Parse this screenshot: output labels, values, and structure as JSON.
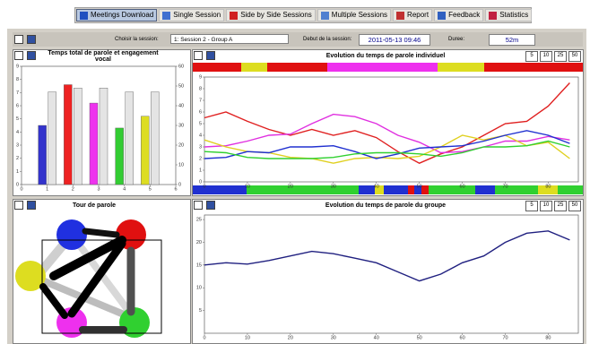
{
  "toolbar": {
    "tabs": [
      "Meetings Download",
      "Single Session",
      "Side by Side Sessions",
      "Multiple Sessions",
      "Report",
      "Feedback",
      "Statistics"
    ]
  },
  "session_bar": {
    "session_label": "Choisir la session:",
    "session_value": "1: Session 2 - Group A",
    "start_label": "Debut de la session:",
    "start_value": "2011-05-13 09:46",
    "duration_label": "Duree:",
    "duration_value": "52m"
  },
  "chart_data": [
    {
      "type": "bar",
      "title": "Temps total de parole et engagement vocal",
      "x": [
        1,
        2,
        3,
        4,
        5
      ],
      "xlim": [
        0,
        6
      ],
      "xticks": [
        0,
        1,
        2,
        3,
        4,
        5,
        6
      ],
      "ylim": [
        0,
        9
      ],
      "yticks": [
        0,
        1,
        2,
        3,
        4,
        5,
        6,
        7,
        8,
        9
      ],
      "y2lim": [
        0,
        60
      ],
      "y2ticks": [
        0,
        10,
        20,
        30,
        40,
        50,
        60
      ],
      "colors": [
        "#3333cc",
        "#ee2222",
        "#ee33ee",
        "#33cc33",
        "#dddd22"
      ],
      "series": [
        {
          "values": [
            4.5,
            7.6,
            6.2,
            4.3,
            5.2
          ]
        },
        {
          "color": "#e4e4e4",
          "axis": "y2",
          "values": [
            47,
            49,
            49,
            47,
            47
          ]
        }
      ]
    },
    {
      "type": "line",
      "title": "Evolution du temps de parole individuel",
      "zoom": [
        5,
        10,
        25,
        50
      ],
      "x": [
        0,
        5,
        10,
        15,
        20,
        25,
        30,
        35,
        40,
        45,
        50,
        55,
        60,
        65,
        70,
        75,
        80,
        85
      ],
      "xlim": [
        0,
        87
      ],
      "xticks": [
        0,
        10,
        20,
        30,
        40,
        50,
        60,
        70,
        80
      ],
      "ylim": [
        0,
        9
      ],
      "yticks": [
        0,
        1,
        2,
        3,
        4,
        5,
        6,
        7,
        8,
        9
      ],
      "series": [
        {
          "color": "#e02020",
          "values": [
            5.5,
            6,
            5.2,
            4.5,
            4,
            4.5,
            4,
            4.4,
            3.8,
            2.6,
            1.6,
            2.4,
            3,
            4,
            5,
            5.2,
            6.5,
            8.5
          ]
        },
        {
          "color": "#e030e0",
          "values": [
            3,
            3.1,
            3.5,
            4,
            4.1,
            5,
            5.8,
            5.6,
            5,
            4,
            3.4,
            2.5,
            2.6,
            3,
            3.5,
            3.5,
            3.9,
            3.6
          ]
        },
        {
          "color": "#e0d020",
          "values": [
            3.6,
            3,
            2.6,
            2.5,
            2.1,
            2,
            1.6,
            2,
            2.1,
            2,
            2.2,
            3,
            4,
            3.6,
            4,
            3.1,
            3.4,
            2
          ]
        },
        {
          "color": "#2030d0",
          "values": [
            2,
            2.1,
            2.6,
            2.5,
            3,
            3,
            3.1,
            2.6,
            2,
            2.4,
            2.9,
            3,
            3.1,
            3.5,
            4,
            4.4,
            4,
            3.3
          ]
        },
        {
          "color": "#30d030",
          "values": [
            2.6,
            2.5,
            2.1,
            2,
            2,
            2,
            2.1,
            2.4,
            2.5,
            2.5,
            2.4,
            2.2,
            2.5,
            3,
            3,
            3.1,
            3.5,
            3
          ]
        }
      ]
    },
    {
      "type": "line",
      "title": "Evolution du temps de parole du groupe",
      "zoom": [
        5,
        10,
        25,
        50
      ],
      "x": [
        0,
        5,
        10,
        15,
        20,
        25,
        30,
        35,
        40,
        45,
        50,
        55,
        60,
        65,
        70,
        75,
        80,
        85
      ],
      "xlim": [
        0,
        87
      ],
      "xticks": [
        0,
        10,
        20,
        30,
        40,
        50,
        60,
        70,
        80
      ],
      "ylim": [
        0,
        26
      ],
      "yticks": [
        5,
        10,
        15,
        20,
        25
      ],
      "series": [
        {
          "color": "#202080",
          "values": [
            15,
            15.5,
            15.2,
            16,
            17,
            18,
            17.5,
            16.5,
            15.5,
            13.5,
            11.5,
            13,
            15.5,
            17,
            20,
            22,
            22.5,
            20.5
          ]
        }
      ]
    }
  ],
  "diagram": {
    "title": "Tour de parole"
  }
}
